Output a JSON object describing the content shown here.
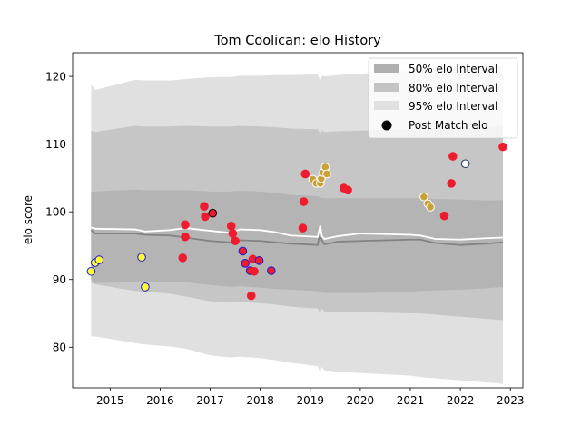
{
  "chart_data": {
    "type": "scatter",
    "title": "Tom Coolican: elo History",
    "xlabel": "",
    "ylabel": "elo score",
    "xlim": [
      2014.25,
      2023.25
    ],
    "ylim": [
      74,
      123.5
    ],
    "x_ticks": [
      2015,
      2016,
      2017,
      2018,
      2019,
      2020,
      2021,
      2022,
      2023
    ],
    "y_ticks": [
      80,
      90,
      100,
      110,
      120
    ],
    "grid": false,
    "legend_position": "top-right",
    "legend": [
      {
        "label": "50% elo Interval",
        "kind": "band",
        "color": "#b0b0b0"
      },
      {
        "label": "80% elo Interval",
        "kind": "band",
        "color": "#c4c4c4"
      },
      {
        "label": "95% elo Interval",
        "kind": "band",
        "color": "#e0e0e0"
      },
      {
        "label": "Post Match elo",
        "kind": "marker",
        "color": "#000000"
      }
    ],
    "band_x": [
      2014.62,
      2014.7,
      2015.5,
      2015.7,
      2016.2,
      2016.5,
      2017.0,
      2017.4,
      2017.6,
      2018.0,
      2018.3,
      2018.6,
      2019.15,
      2019.2,
      2019.23,
      2019.28,
      2019.55,
      2020.0,
      2020.5,
      2021.0,
      2021.2,
      2021.5,
      2022.0,
      2022.5,
      2022.85
    ],
    "mean_line": [
      97.3,
      96.8,
      96.8,
      96.6,
      96.5,
      96.2,
      95.7,
      95.5,
      95.8,
      95.7,
      95.5,
      95.3,
      95.1,
      97.4,
      95.8,
      95.2,
      95.6,
      95.7,
      95.8,
      95.9,
      95.9,
      95.4,
      95.1,
      95.3,
      95.5
    ],
    "white_line": [
      97.7,
      97.5,
      97.4,
      97.1,
      97.3,
      97.6,
      97.2,
      96.9,
      97.4,
      97.3,
      97.0,
      96.5,
      96.3,
      98.0,
      96.4,
      96.0,
      96.4,
      96.8,
      96.7,
      96.6,
      96.5,
      96.0,
      95.9,
      96.1,
      96.2
    ],
    "band_50_lower": [
      90.0,
      89.5,
      89.6,
      89.7,
      89.6,
      89.6,
      89.2,
      88.9,
      89.0,
      88.8,
      88.6,
      88.5,
      88.3,
      88.1,
      88.2,
      88.0,
      88.0,
      88.0,
      88.1,
      88.2,
      88.3,
      88.4,
      88.5,
      88.7,
      88.9
    ],
    "band_50_upper": [
      103.0,
      103.0,
      103.3,
      103.2,
      103.2,
      103.2,
      103.0,
      103.0,
      103.1,
      103.0,
      102.8,
      102.5,
      102.3,
      102.0,
      102.1,
      102.0,
      102.0,
      102.0,
      102.0,
      102.0,
      102.0,
      101.9,
      101.8,
      101.7,
      101.7
    ],
    "band_80_lower": [
      89.5,
      89.3,
      88.3,
      88.2,
      87.9,
      87.5,
      86.8,
      86.6,
      86.7,
      86.5,
      86.3,
      86.0,
      85.7,
      85.0,
      85.7,
      85.3,
      85.2,
      85.2,
      85.1,
      85.0,
      85.0,
      84.8,
      84.5,
      84.2,
      84.0
    ],
    "band_80_upper": [
      112.0,
      111.8,
      112.7,
      112.6,
      112.6,
      112.7,
      112.6,
      112.6,
      112.7,
      112.6,
      112.5,
      112.3,
      112.2,
      111.5,
      112.0,
      111.8,
      111.9,
      112.0,
      112.1,
      112.2,
      112.3,
      112.4,
      112.5,
      112.6,
      112.7
    ],
    "band_95_lower": [
      81.6,
      81.6,
      80.6,
      80.4,
      80.1,
      79.8,
      78.8,
      78.5,
      78.6,
      78.4,
      78.1,
      77.7,
      77.2,
      76.3,
      77.1,
      76.6,
      76.4,
      76.2,
      76.0,
      75.8,
      75.6,
      75.4,
      75.1,
      74.8,
      74.6
    ],
    "band_95_upper": [
      118.8,
      118.0,
      119.5,
      119.4,
      119.4,
      119.6,
      119.9,
      119.9,
      120.1,
      120.1,
      120.2,
      120.2,
      120.3,
      119.3,
      120.1,
      120.0,
      120.2,
      120.4,
      120.6,
      120.8,
      121.0,
      121.1,
      121.3,
      121.4,
      121.5
    ],
    "points": [
      {
        "x": 2014.62,
        "y": 91.2,
        "fill": "#ffff33",
        "edge": "#1a1ad8"
      },
      {
        "x": 2014.7,
        "y": 92.5,
        "fill": "#ffff33",
        "edge": "#1a1ad8"
      },
      {
        "x": 2014.78,
        "y": 92.9,
        "fill": "#ffff33",
        "edge": "#1a1ad8"
      },
      {
        "x": 2015.63,
        "y": 93.3,
        "fill": "#ffff33",
        "edge": "#1a1ad8"
      },
      {
        "x": 2015.7,
        "y": 88.9,
        "fill": "#ffff33",
        "edge": "#1a1ad8"
      },
      {
        "x": 2016.45,
        "y": 93.2,
        "fill": "#ee1c2e",
        "edge": "#ee1c2e"
      },
      {
        "x": 2016.5,
        "y": 98.1,
        "fill": "#ee1c2e",
        "edge": "#ee1c2e"
      },
      {
        "x": 2016.5,
        "y": 96.3,
        "fill": "#ee1c2e",
        "edge": "#ee1c2e"
      },
      {
        "x": 2016.88,
        "y": 100.8,
        "fill": "#ee1c2e",
        "edge": "#ee1c2e"
      },
      {
        "x": 2016.9,
        "y": 99.3,
        "fill": "#ee1c2e",
        "edge": "#ee1c2e"
      },
      {
        "x": 2017.05,
        "y": 99.8,
        "fill": "#ee1c2e",
        "edge": "#000000"
      },
      {
        "x": 2017.42,
        "y": 97.9,
        "fill": "#ee1c2e",
        "edge": "#ee1c2e"
      },
      {
        "x": 2017.45,
        "y": 96.8,
        "fill": "#ee1c2e",
        "edge": "#ee1c2e"
      },
      {
        "x": 2017.5,
        "y": 95.7,
        "fill": "#ee1c2e",
        "edge": "#ee1c2e"
      },
      {
        "x": 2017.65,
        "y": 94.2,
        "fill": "#ee1c2e",
        "edge": "#1a1ad8"
      },
      {
        "x": 2017.7,
        "y": 92.4,
        "fill": "#ee1c2e",
        "edge": "#1a1ad8"
      },
      {
        "x": 2017.8,
        "y": 91.3,
        "fill": "#ee1c2e",
        "edge": "#1a1ad8"
      },
      {
        "x": 2017.82,
        "y": 87.6,
        "fill": "#ee1c2e",
        "edge": "#ee1c2e"
      },
      {
        "x": 2017.85,
        "y": 93.0,
        "fill": "#ee1c2e",
        "edge": "#ee1c2e"
      },
      {
        "x": 2017.88,
        "y": 91.2,
        "fill": "#ee1c2e",
        "edge": "#ee1c2e"
      },
      {
        "x": 2017.98,
        "y": 92.8,
        "fill": "#ee1c2e",
        "edge": "#1a1ad8"
      },
      {
        "x": 2018.22,
        "y": 91.3,
        "fill": "#ee1c2e",
        "edge": "#1a1ad8"
      },
      {
        "x": 2018.85,
        "y": 97.6,
        "fill": "#ee1c2e",
        "edge": "#ee1c2e"
      },
      {
        "x": 2018.87,
        "y": 101.5,
        "fill": "#ee1c2e",
        "edge": "#ee1c2e"
      },
      {
        "x": 2018.9,
        "y": 105.6,
        "fill": "#ee1c2e",
        "edge": "#ee1c2e"
      },
      {
        "x": 2019.05,
        "y": 104.8,
        "fill": "#c8a238",
        "edge": "#ffffff"
      },
      {
        "x": 2019.12,
        "y": 104.2,
        "fill": "#c8a238",
        "edge": "#ffffff"
      },
      {
        "x": 2019.2,
        "y": 104.2,
        "fill": "#c8a238",
        "edge": "#ffffff"
      },
      {
        "x": 2019.22,
        "y": 104.9,
        "fill": "#c8a238",
        "edge": "#ffffff"
      },
      {
        "x": 2019.26,
        "y": 105.8,
        "fill": "#c8a238",
        "edge": "#ffffff"
      },
      {
        "x": 2019.3,
        "y": 106.6,
        "fill": "#c8a238",
        "edge": "#ffffff"
      },
      {
        "x": 2019.33,
        "y": 105.6,
        "fill": "#c8a238",
        "edge": "#ffffff"
      },
      {
        "x": 2019.67,
        "y": 103.5,
        "fill": "#ee1c2e",
        "edge": "#ee1c2e"
      },
      {
        "x": 2019.75,
        "y": 103.2,
        "fill": "#ee1c2e",
        "edge": "#ee1c2e"
      },
      {
        "x": 2021.27,
        "y": 102.2,
        "fill": "#c8a238",
        "edge": "#ffffff"
      },
      {
        "x": 2021.35,
        "y": 101.2,
        "fill": "#c8a238",
        "edge": "#ffffff"
      },
      {
        "x": 2021.4,
        "y": 100.7,
        "fill": "#c8a238",
        "edge": "#ffffff"
      },
      {
        "x": 2021.68,
        "y": 99.4,
        "fill": "#ee1c2e",
        "edge": "#ee1c2e"
      },
      {
        "x": 2021.82,
        "y": 104.2,
        "fill": "#ee1c2e",
        "edge": "#ee1c2e"
      },
      {
        "x": 2021.85,
        "y": 108.2,
        "fill": "#ee1c2e",
        "edge": "#ee1c2e"
      },
      {
        "x": 2022.1,
        "y": 107.1,
        "fill": "#ffffff",
        "edge": "#1e3a5a"
      },
      {
        "x": 2022.85,
        "y": 109.6,
        "fill": "#ee1c2e",
        "edge": "#ee1c2e"
      }
    ]
  },
  "colors": {
    "band_95": "#e0e0e0",
    "band_80": "#c6c6c6",
    "band_50": "#b4b4b4",
    "mean_line": "#828282",
    "white_line": "#ffffff",
    "axis": "#000000"
  }
}
